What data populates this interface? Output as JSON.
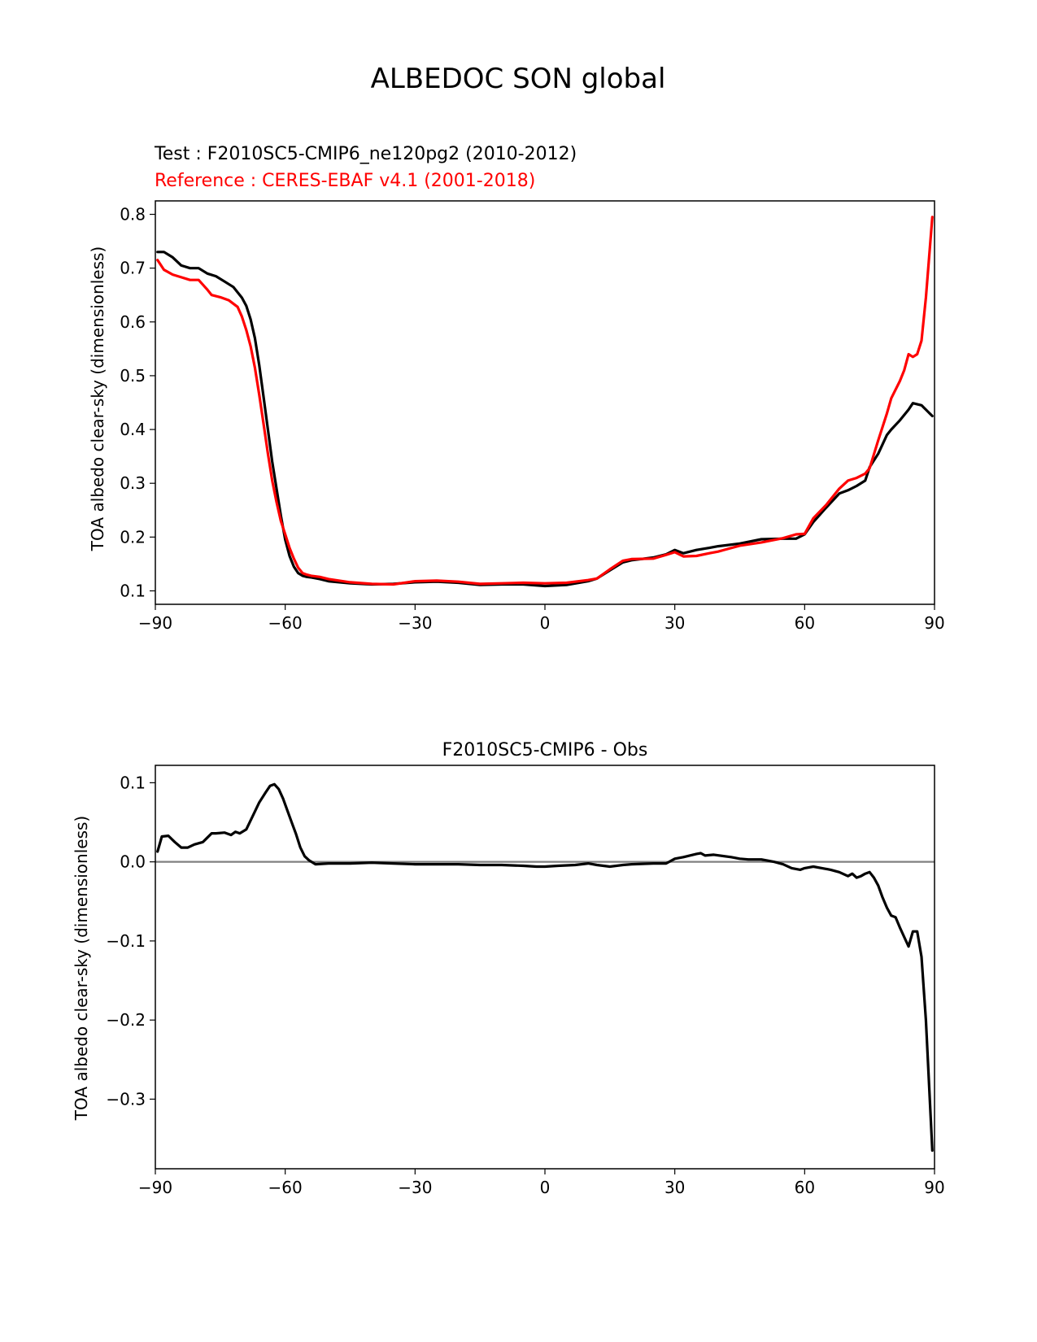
{
  "figure": {
    "suptitle": "ALBEDOC SON global"
  },
  "chart_data": [
    {
      "type": "line",
      "title_test": "Test : F2010SC5-CMIP6_ne120pg2 (2010-2012)",
      "title_reference": "Reference : CERES-EBAF v4.1 (2001-2018)",
      "xlabel": "",
      "ylabel": "TOA albedo clear-sky (dimensionless)",
      "xlim": [
        -90,
        90
      ],
      "ylim": [
        0.075,
        0.825
      ],
      "xticks": [
        -90,
        -60,
        -30,
        0,
        30,
        60,
        90
      ],
      "xtick_labels": [
        "−90",
        "−60",
        "−30",
        "0",
        "30",
        "60",
        "90"
      ],
      "yticks": [
        0.1,
        0.2,
        0.3,
        0.4,
        0.5,
        0.6,
        0.7,
        0.8
      ],
      "ytick_labels": [
        "0.1",
        "0.2",
        "0.3",
        "0.4",
        "0.5",
        "0.6",
        "0.7",
        "0.8"
      ],
      "grid": false,
      "series": [
        {
          "color": "#000000",
          "x": [
            -89.5,
            -88,
            -86,
            -84,
            -82,
            -80,
            -78,
            -76,
            -74,
            -72,
            -70,
            -69,
            -68,
            -67,
            -66,
            -65,
            -64,
            -63,
            -62,
            -61,
            -60,
            -59,
            -58,
            -57,
            -56,
            -55,
            -54,
            -52,
            -50,
            -45,
            -40,
            -35,
            -30,
            -25,
            -20,
            -15,
            -10,
            -5,
            0,
            5,
            10,
            12,
            15,
            18,
            20,
            25,
            28,
            30,
            32,
            35,
            38,
            40,
            45,
            50,
            55,
            58,
            60,
            62,
            65,
            68,
            70,
            72,
            74,
            75,
            77,
            79,
            80,
            82,
            84,
            85,
            87,
            89.5
          ],
          "y": [
            0.73,
            0.73,
            0.72,
            0.705,
            0.7,
            0.7,
            0.69,
            0.685,
            0.675,
            0.665,
            0.645,
            0.63,
            0.605,
            0.57,
            0.52,
            0.46,
            0.4,
            0.34,
            0.29,
            0.24,
            0.195,
            0.165,
            0.145,
            0.133,
            0.128,
            0.126,
            0.125,
            0.122,
            0.118,
            0.114,
            0.112,
            0.113,
            0.116,
            0.117,
            0.115,
            0.111,
            0.112,
            0.112,
            0.109,
            0.111,
            0.118,
            0.123,
            0.138,
            0.153,
            0.157,
            0.162,
            0.168,
            0.176,
            0.17,
            0.176,
            0.18,
            0.183,
            0.188,
            0.196,
            0.197,
            0.197,
            0.205,
            0.228,
            0.255,
            0.281,
            0.287,
            0.295,
            0.305,
            0.33,
            0.355,
            0.39,
            0.4,
            0.417,
            0.437,
            0.449,
            0.445,
            0.425
          ]
        },
        {
          "color": "#ff0000",
          "x": [
            -89.5,
            -88,
            -86,
            -84,
            -82,
            -80,
            -78,
            -77,
            -75,
            -73,
            -71,
            -70,
            -69,
            -68,
            -67,
            -66,
            -65,
            -64,
            -63,
            -62,
            -61,
            -60,
            -59,
            -58,
            -57,
            -56,
            -55,
            -54,
            -52,
            -50,
            -45,
            -40,
            -35,
            -30,
            -25,
            -20,
            -15,
            -10,
            -5,
            0,
            5,
            10,
            12,
            15,
            18,
            20,
            25,
            28,
            30,
            32,
            35,
            38,
            40,
            45,
            50,
            55,
            58,
            60,
            62,
            65,
            68,
            70,
            72,
            74,
            75,
            77,
            79,
            80,
            82,
            83,
            84,
            85,
            86,
            87,
            88,
            89.5
          ],
          "y": [
            0.715,
            0.697,
            0.688,
            0.683,
            0.678,
            0.678,
            0.66,
            0.65,
            0.646,
            0.64,
            0.628,
            0.61,
            0.585,
            0.555,
            0.515,
            0.465,
            0.41,
            0.355,
            0.305,
            0.265,
            0.23,
            0.205,
            0.18,
            0.16,
            0.143,
            0.133,
            0.13,
            0.128,
            0.126,
            0.122,
            0.116,
            0.113,
            0.112,
            0.118,
            0.119,
            0.117,
            0.113,
            0.114,
            0.115,
            0.114,
            0.115,
            0.12,
            0.123,
            0.14,
            0.156,
            0.159,
            0.16,
            0.167,
            0.172,
            0.164,
            0.165,
            0.17,
            0.173,
            0.184,
            0.19,
            0.198,
            0.205,
            0.206,
            0.235,
            0.26,
            0.29,
            0.305,
            0.31,
            0.318,
            0.328,
            0.38,
            0.43,
            0.458,
            0.49,
            0.51,
            0.54,
            0.535,
            0.54,
            0.565,
            0.645,
            0.795
          ]
        }
      ]
    },
    {
      "type": "line",
      "title": "F2010SC5-CMIP6 - Obs",
      "xlabel": "",
      "ylabel": "TOA albedo clear-sky (dimensionless)",
      "xlim": [
        -90,
        90
      ],
      "ylim": [
        -0.388,
        0.122
      ],
      "xticks": [
        -90,
        -60,
        -30,
        0,
        30,
        60,
        90
      ],
      "xtick_labels": [
        "−90",
        "−60",
        "−30",
        "0",
        "30",
        "60",
        "90"
      ],
      "yticks": [
        -0.3,
        -0.2,
        -0.1,
        0.0,
        0.1
      ],
      "ytick_labels": [
        "−0.3",
        "−0.2",
        "−0.1",
        "0.0",
        "0.1"
      ],
      "grid": false,
      "zero_line_color": "#808080",
      "series": [
        {
          "color": "#000000",
          "x": [
            -89.5,
            -88.5,
            -87,
            -85.5,
            -84,
            -82.5,
            -81,
            -79,
            -77,
            -76,
            -74,
            -72.5,
            -71.5,
            -70.5,
            -69,
            -67.5,
            -66,
            -64.5,
            -63.5,
            -62.5,
            -61.5,
            -60.5,
            -59.5,
            -58.5,
            -57.5,
            -56.5,
            -55.5,
            -54.5,
            -53,
            -50,
            -45,
            -40,
            -35,
            -30,
            -25,
            -20,
            -15,
            -10,
            -5,
            -2,
            0,
            3,
            7,
            10,
            12,
            15,
            18,
            20,
            25,
            28,
            30,
            32,
            35,
            36,
            37,
            39,
            43,
            45,
            47,
            50,
            53,
            55,
            57,
            59,
            60,
            62,
            64,
            66,
            68,
            70,
            71,
            72,
            73,
            74,
            75,
            76,
            77,
            78,
            79,
            80,
            81,
            82,
            83,
            84,
            85,
            86,
            87,
            88,
            89.5
          ],
          "y": [
            0.013,
            0.032,
            0.033,
            0.025,
            0.018,
            0.018,
            0.022,
            0.025,
            0.036,
            0.036,
            0.037,
            0.034,
            0.038,
            0.036,
            0.041,
            0.058,
            0.075,
            0.088,
            0.096,
            0.098,
            0.092,
            0.08,
            0.065,
            0.05,
            0.035,
            0.018,
            0.007,
            0.002,
            -0.003,
            -0.002,
            -0.002,
            -0.001,
            -0.002,
            -0.003,
            -0.003,
            -0.003,
            -0.004,
            -0.004,
            -0.005,
            -0.006,
            -0.006,
            -0.005,
            -0.004,
            -0.002,
            -0.004,
            -0.006,
            -0.004,
            -0.003,
            -0.002,
            -0.002,
            0.004,
            0.006,
            0.01,
            0.011,
            0.008,
            0.009,
            0.006,
            0.004,
            0.003,
            0.003,
            0.0,
            -0.003,
            -0.008,
            -0.01,
            -0.008,
            -0.006,
            -0.008,
            -0.01,
            -0.013,
            -0.018,
            -0.015,
            -0.02,
            -0.018,
            -0.015,
            -0.013,
            -0.02,
            -0.03,
            -0.045,
            -0.058,
            -0.068,
            -0.07,
            -0.083,
            -0.095,
            -0.107,
            -0.088,
            -0.088,
            -0.12,
            -0.2,
            -0.365
          ]
        }
      ]
    }
  ]
}
